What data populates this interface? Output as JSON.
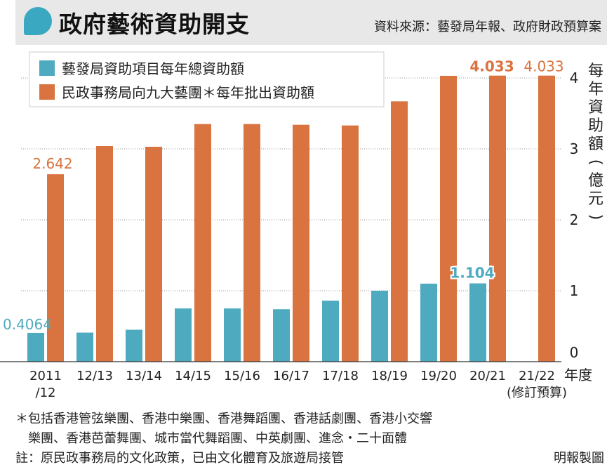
{
  "header": {
    "title": "政府藝術資助開支",
    "source": "資料來源：藝發局年報、政府財政預算案"
  },
  "colors": {
    "adc": "#4eaabf",
    "hab": "#d9733f",
    "header_bg": "#e8e8e8",
    "grid": "#999999"
  },
  "chart_data": {
    "type": "bar",
    "categories": [
      "2011/12",
      "12/13",
      "13/14",
      "14/15",
      "15/16",
      "16/17",
      "17/18",
      "18/19",
      "19/20",
      "20/21",
      "21/22"
    ],
    "category_lines": [
      [
        "2011",
        "/12"
      ],
      [
        "12/13"
      ],
      [
        "13/14"
      ],
      [
        "14/15"
      ],
      [
        "15/16"
      ],
      [
        "16/17"
      ],
      [
        "17/18"
      ],
      [
        "18/19"
      ],
      [
        "19/20"
      ],
      [
        "20/21"
      ],
      [
        "21/22",
        "(修訂預算)"
      ]
    ],
    "series": [
      {
        "name": "藝發局資助項目每年總資助額",
        "color": "#4eaabf",
        "values": [
          0.4064,
          0.41,
          0.45,
          0.75,
          0.75,
          0.74,
          0.86,
          1.0,
          1.1,
          1.104,
          null
        ]
      },
      {
        "name": "民政事務局向九大藝團＊每年批出資助額",
        "color": "#d9733f",
        "values": [
          2.642,
          3.04,
          3.03,
          3.35,
          3.35,
          3.34,
          3.33,
          3.67,
          4.03,
          4.033,
          4.033
        ]
      }
    ],
    "data_labels": [
      {
        "series": 0,
        "index": 0,
        "text": "0.4064"
      },
      {
        "series": 0,
        "index": 9,
        "text": "1.104"
      },
      {
        "series": 1,
        "index": 0,
        "text": "2.642"
      },
      {
        "series": 1,
        "index": 9,
        "text": "4.033"
      },
      {
        "series": 1,
        "index": 10,
        "text": "4.033"
      }
    ],
    "ylim": [
      0,
      4
    ],
    "yticks": [
      "0",
      "1",
      "2",
      "3",
      "4"
    ],
    "ylabel": "每年資助額（億元）",
    "xlabel": "年度",
    "legend_position": "top-left",
    "grid": true
  },
  "footnotes": {
    "line1": "＊包括香港管弦樂團、香港中樂團、香港舞蹈團、香港話劇團、香港小交響",
    "line2": "樂團、香港芭蕾舞團、城市當代舞蹈團、中英劇團、進念・二十面體",
    "line3": "註：原民政事務局的文化政策，已由文化體育及旅遊局接管",
    "credit": "明報製圖"
  }
}
